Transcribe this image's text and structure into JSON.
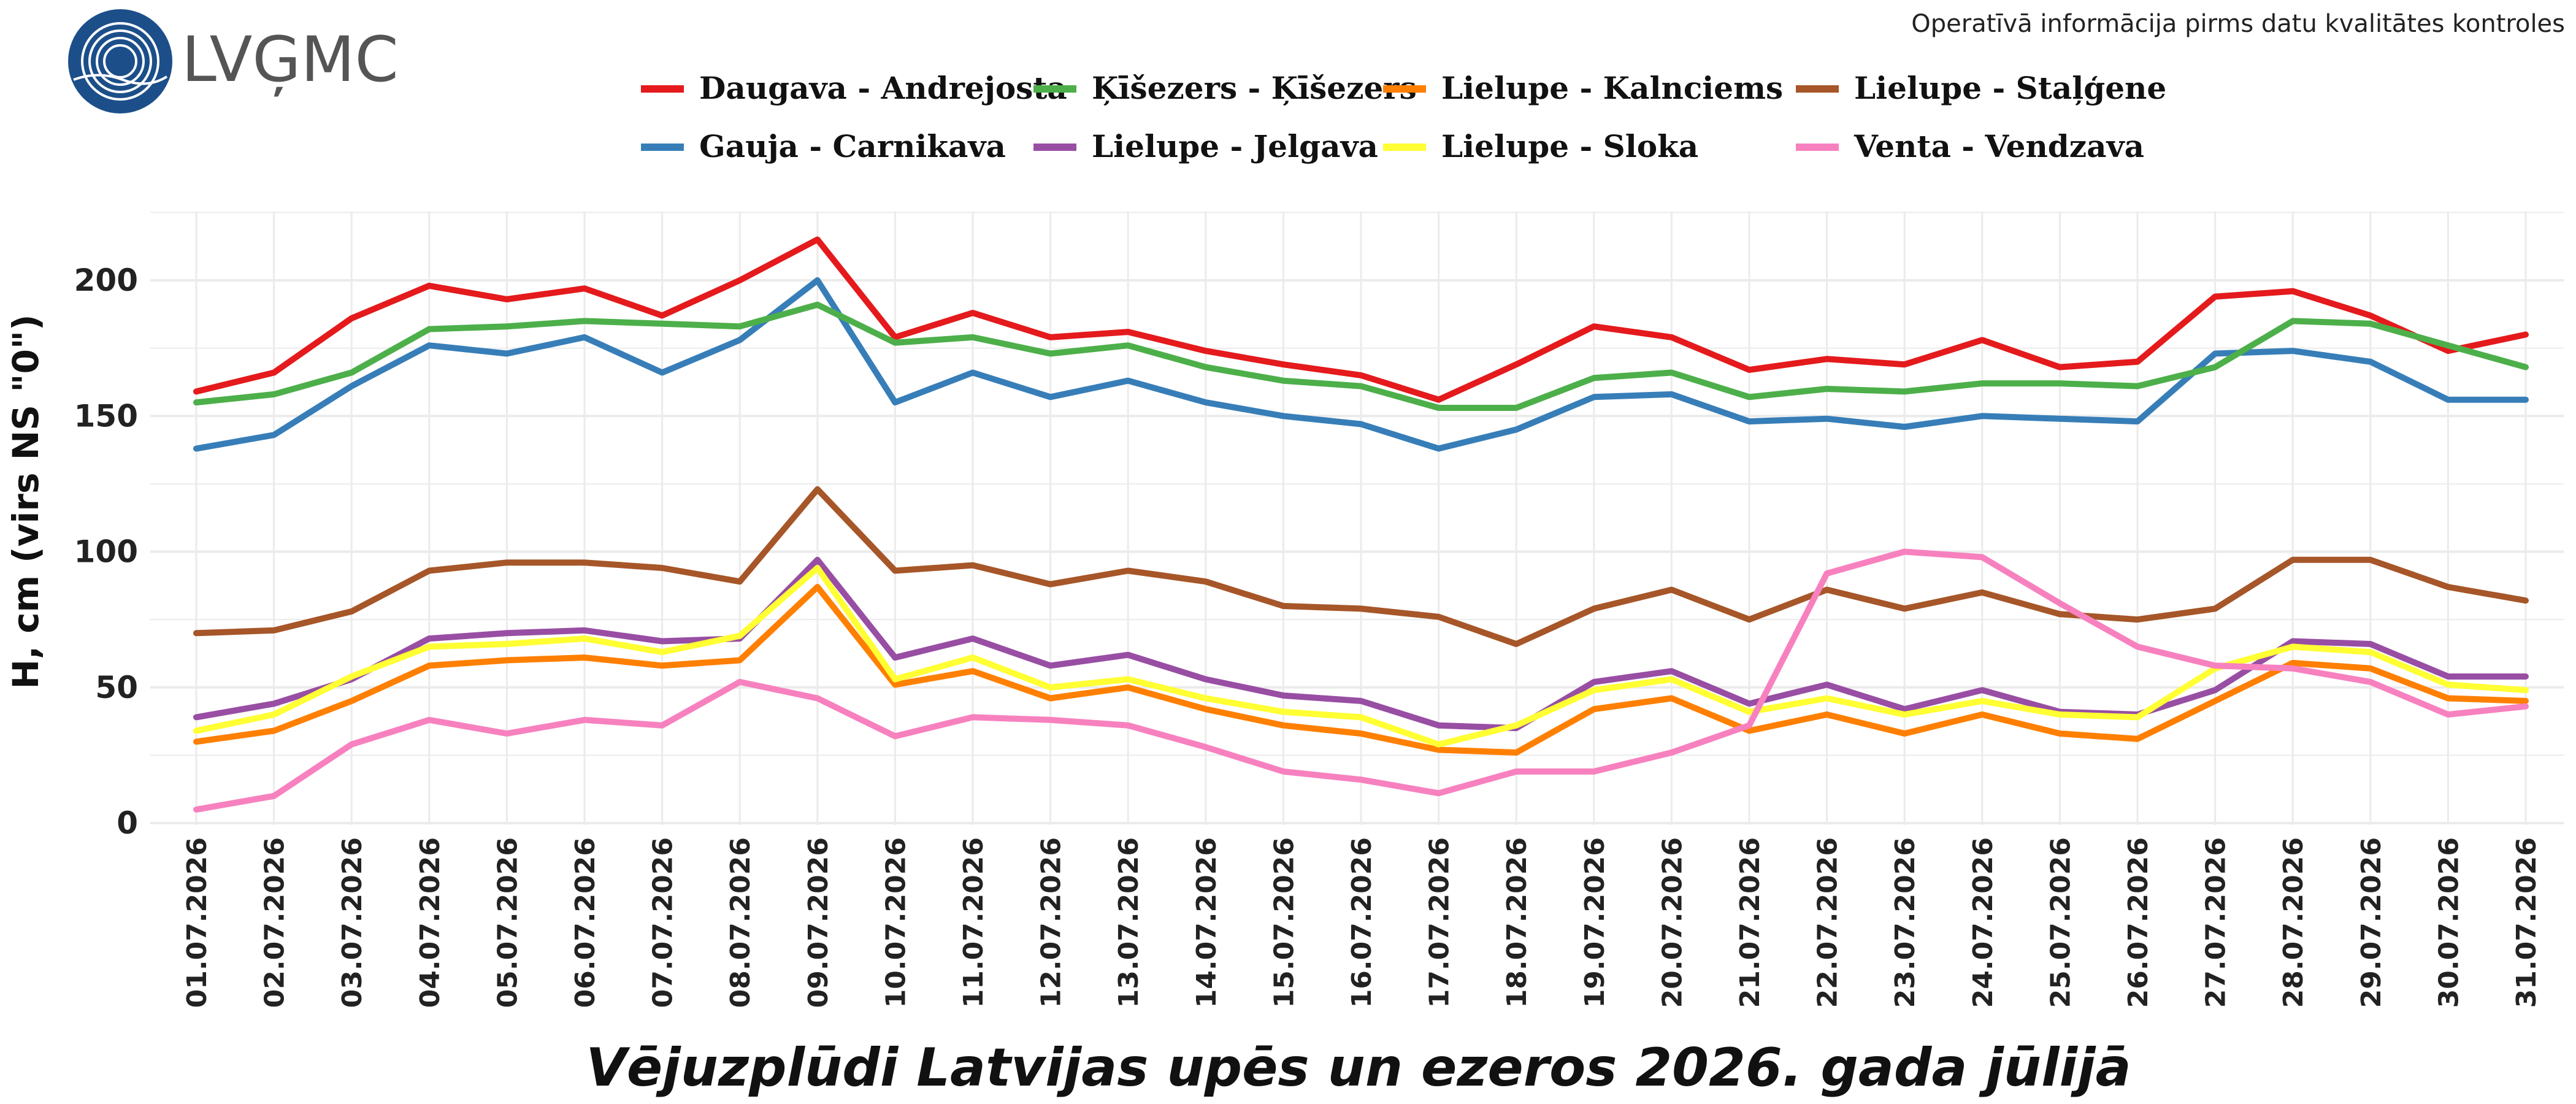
{
  "header": {
    "logo_text": "LVĢMC",
    "note": "Operatīvā informācija pirms datu kvalitātes kontroles"
  },
  "colors": {
    "logo_blue": "#1c4f8a",
    "logo_text": "#555555",
    "grid": "#ebebeb"
  },
  "chart_data": {
    "type": "line",
    "title": "Vējuzplūdi Latvijas upēs un ezeros 2026. gada jūlijā",
    "xlabel": "",
    "ylabel": "H, cm (virs NS \"0\")",
    "ylim": [
      0,
      225
    ],
    "yticks": [
      0,
      50,
      100,
      150,
      200
    ],
    "grid": true,
    "legend_position": "top",
    "x": [
      "01.07.2026",
      "02.07.2026",
      "03.07.2026",
      "04.07.2026",
      "05.07.2026",
      "06.07.2026",
      "07.07.2026",
      "08.07.2026",
      "09.07.2026",
      "10.07.2026",
      "11.07.2026",
      "12.07.2026",
      "13.07.2026",
      "14.07.2026",
      "15.07.2026",
      "16.07.2026",
      "17.07.2026",
      "18.07.2026",
      "19.07.2026",
      "20.07.2026",
      "21.07.2026",
      "22.07.2026",
      "23.07.2026",
      "24.07.2026",
      "25.07.2026",
      "26.07.2026",
      "27.07.2026",
      "28.07.2026",
      "29.07.2026",
      "30.07.2026",
      "31.07.2026"
    ],
    "series": [
      {
        "name": "Daugava - Andrejosta",
        "color": "#e41a1c",
        "values": [
          159,
          166,
          186,
          198,
          193,
          197,
          187,
          200,
          215,
          179,
          188,
          179,
          181,
          174,
          169,
          165,
          156,
          169,
          183,
          179,
          167,
          171,
          169,
          178,
          168,
          170,
          194,
          196,
          187,
          174,
          180
        ]
      },
      {
        "name": "Gauja - Carnikava",
        "color": "#377eb8",
        "values": [
          138,
          143,
          161,
          176,
          173,
          179,
          166,
          178,
          200,
          155,
          166,
          157,
          163,
          155,
          150,
          147,
          138,
          145,
          157,
          158,
          148,
          149,
          146,
          150,
          149,
          148,
          173,
          174,
          170,
          156,
          156
        ]
      },
      {
        "name": "Ķīšezers - Ķīšezers",
        "color": "#4daf4a",
        "values": [
          155,
          158,
          166,
          182,
          183,
          185,
          184,
          183,
          191,
          177,
          179,
          173,
          176,
          168,
          163,
          161,
          153,
          153,
          164,
          166,
          157,
          160,
          159,
          162,
          162,
          161,
          168,
          185,
          184,
          176,
          168
        ]
      },
      {
        "name": "Lielupe - Jelgava",
        "color": "#984ea3",
        "values": [
          39,
          44,
          53,
          68,
          70,
          71,
          67,
          68,
          97,
          61,
          68,
          58,
          62,
          53,
          47,
          45,
          36,
          35,
          52,
          56,
          44,
          51,
          42,
          49,
          41,
          40,
          49,
          67,
          66,
          54,
          54
        ]
      },
      {
        "name": "Lielupe - Kalnciems",
        "color": "#ff7f00",
        "values": [
          30,
          34,
          45,
          58,
          60,
          61,
          58,
          60,
          87,
          51,
          56,
          46,
          50,
          42,
          36,
          33,
          27,
          26,
          42,
          46,
          34,
          40,
          33,
          40,
          33,
          31,
          45,
          59,
          57,
          46,
          45
        ]
      },
      {
        "name": "Lielupe - Sloka",
        "color": "#ffff33",
        "values": [
          34,
          40,
          54,
          65,
          66,
          68,
          63,
          69,
          94,
          53,
          61,
          50,
          53,
          46,
          41,
          39,
          29,
          36,
          49,
          53,
          41,
          46,
          40,
          45,
          40,
          39,
          57,
          65,
          63,
          51,
          49
        ]
      },
      {
        "name": "Lielupe - Staļģene",
        "color": "#a65628",
        "values": [
          70,
          71,
          78,
          93,
          96,
          96,
          94,
          89,
          123,
          93,
          95,
          88,
          93,
          89,
          80,
          79,
          76,
          66,
          79,
          86,
          75,
          86,
          79,
          85,
          77,
          75,
          79,
          97,
          97,
          87,
          82
        ]
      },
      {
        "name": "Venta - Vendzava",
        "color": "#f781bf",
        "values": [
          5,
          10,
          29,
          38,
          33,
          38,
          36,
          52,
          46,
          32,
          39,
          38,
          36,
          28,
          19,
          16,
          11,
          19,
          19,
          26,
          36,
          92,
          100,
          98,
          81,
          65,
          58,
          57,
          52,
          40,
          43
        ]
      }
    ]
  }
}
